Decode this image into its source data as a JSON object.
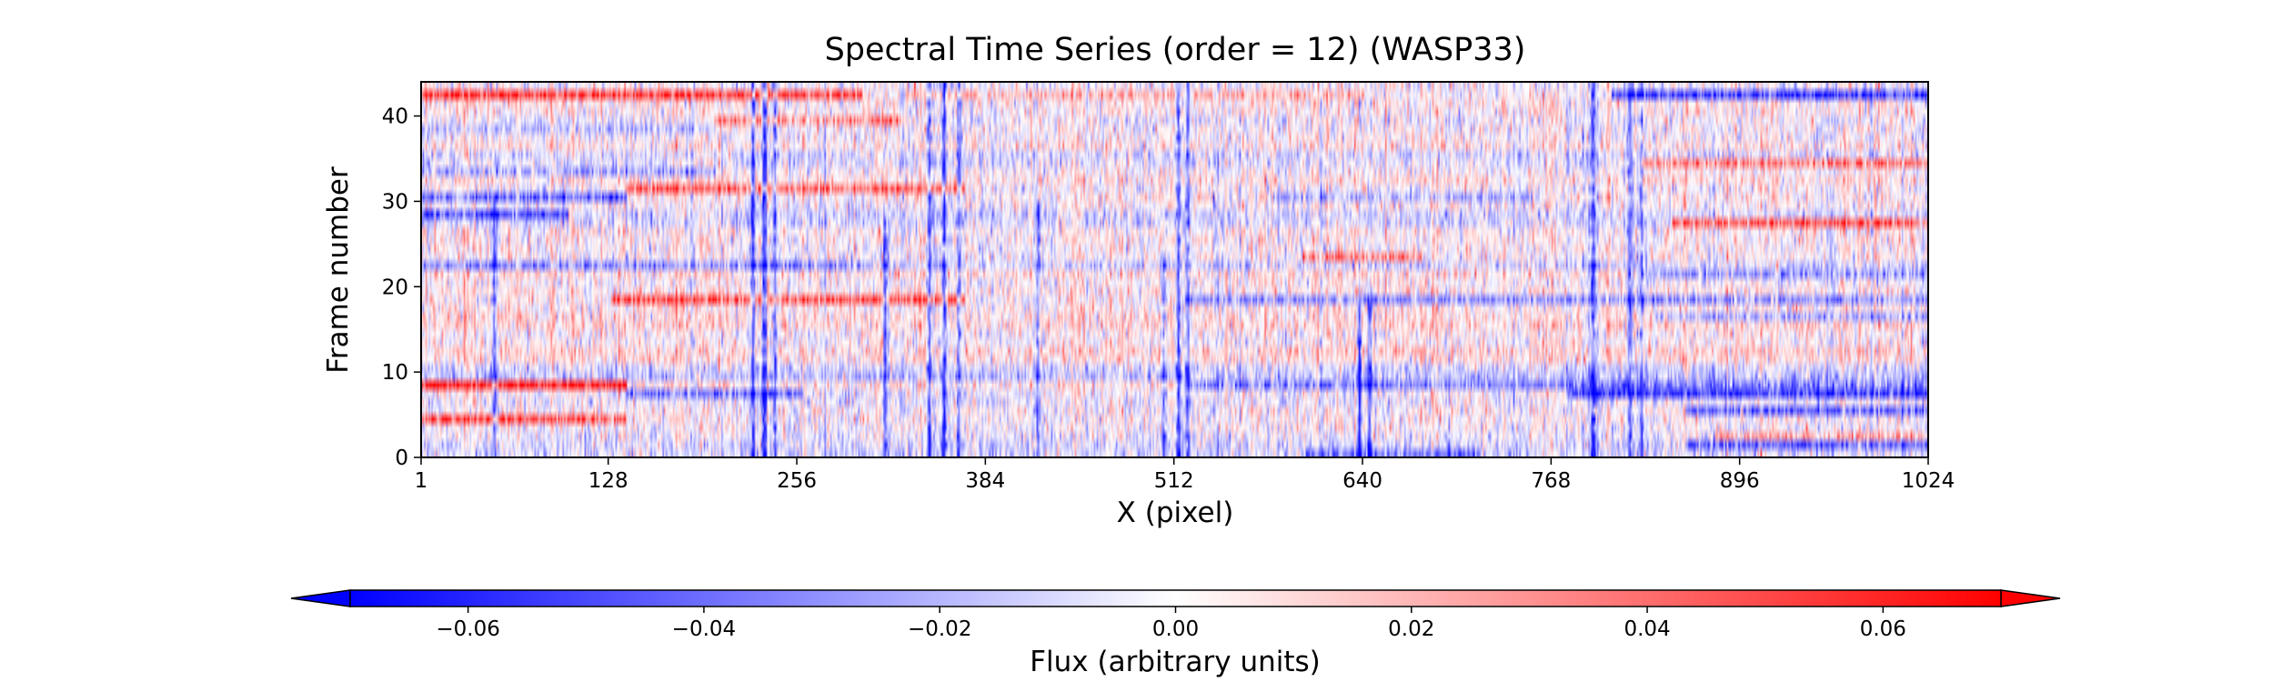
{
  "chart_data": {
    "type": "heatmap",
    "title": "Spectral Time Series (order = 12) (WASP33)",
    "xlabel": "X (pixel)",
    "ylabel": "Frame number",
    "xlim": [
      1,
      1024
    ],
    "ylim": [
      0,
      44
    ],
    "x_ticks": [
      1,
      128,
      256,
      384,
      512,
      640,
      768,
      896,
      1024
    ],
    "x_tick_labels": [
      "1",
      "128",
      "256",
      "384",
      "512",
      "640",
      "768",
      "896",
      "1024"
    ],
    "y_ticks": [
      0,
      10,
      20,
      30,
      40
    ],
    "y_tick_labels": [
      "0",
      "10",
      "20",
      "30",
      "40"
    ],
    "n_frames": 44,
    "n_pixels": 1024,
    "value_range": [
      -0.07,
      0.07
    ],
    "colormap": "bwr",
    "colorbar": {
      "label": "Flux (arbitrary units)",
      "orientation": "horizontal",
      "extend": "both",
      "range": [
        -0.07,
        0.07
      ],
      "ticks": [
        -0.06,
        -0.04,
        -0.02,
        0.0,
        0.02,
        0.04,
        0.06
      ],
      "tick_labels": [
        "−0.06",
        "−0.04",
        "−0.02",
        "0.00",
        "0.02",
        "0.04",
        "0.06"
      ]
    },
    "column_features": [
      {
        "x": 50,
        "amplitude": -0.05,
        "frames": [
          0,
          30
        ]
      },
      {
        "x": 226,
        "amplitude": -0.06,
        "frames": [
          0,
          44
        ]
      },
      {
        "x": 234,
        "amplitude": -0.06,
        "frames": [
          0,
          44
        ]
      },
      {
        "x": 241,
        "amplitude": -0.045,
        "frames": [
          0,
          44
        ]
      },
      {
        "x": 316,
        "amplitude": -0.06,
        "frames": [
          0,
          28
        ]
      },
      {
        "x": 346,
        "amplitude": -0.05,
        "frames": [
          0,
          44
        ]
      },
      {
        "x": 356,
        "amplitude": -0.055,
        "frames": [
          0,
          44
        ]
      },
      {
        "x": 366,
        "amplitude": -0.045,
        "frames": [
          0,
          44
        ]
      },
      {
        "x": 420,
        "amplitude": -0.05,
        "frames": [
          0,
          30
        ]
      },
      {
        "x": 505,
        "amplitude": -0.04,
        "frames": [
          0,
          24
        ]
      },
      {
        "x": 515,
        "amplitude": -0.06,
        "frames": [
          0,
          44
        ]
      },
      {
        "x": 522,
        "amplitude": -0.045,
        "frames": [
          0,
          44
        ]
      },
      {
        "x": 638,
        "amplitude": -0.055,
        "frames": [
          0,
          18
        ]
      },
      {
        "x": 645,
        "amplitude": -0.045,
        "frames": [
          0,
          18
        ]
      },
      {
        "x": 797,
        "amplitude": -0.06,
        "frames": [
          0,
          44
        ]
      },
      {
        "x": 822,
        "amplitude": -0.05,
        "frames": [
          0,
          44
        ]
      },
      {
        "x": 830,
        "amplitude": -0.05,
        "frames": [
          0,
          44
        ]
      }
    ],
    "row_features": [
      {
        "frame": 42,
        "x_range": [
          1,
          300
        ],
        "amplitude": 0.06
      },
      {
        "frame": 42,
        "x_range": [
          330,
          640
        ],
        "amplitude": 0.02
      },
      {
        "frame": 42,
        "x_range": [
          810,
          1024
        ],
        "amplitude": -0.06
      },
      {
        "frame": 39,
        "x_range": [
          200,
          330
        ],
        "amplitude": 0.04
      },
      {
        "frame": 38,
        "x_range": [
          1,
          200
        ],
        "amplitude": -0.02
      },
      {
        "frame": 34,
        "x_range": [
          830,
          1024
        ],
        "amplitude": 0.045
      },
      {
        "frame": 33,
        "x_range": [
          1,
          200
        ],
        "amplitude": -0.03
      },
      {
        "frame": 31,
        "x_range": [
          140,
          370
        ],
        "amplitude": 0.05
      },
      {
        "frame": 30,
        "x_range": [
          1,
          140
        ],
        "amplitude": -0.05
      },
      {
        "frame": 30,
        "x_range": [
          580,
          760
        ],
        "amplitude": -0.025
      },
      {
        "frame": 28,
        "x_range": [
          1,
          100
        ],
        "amplitude": -0.04
      },
      {
        "frame": 27,
        "x_range": [
          850,
          1024
        ],
        "amplitude": 0.06
      },
      {
        "frame": 23,
        "x_range": [
          600,
          680
        ],
        "amplitude": 0.04
      },
      {
        "frame": 22,
        "x_range": [
          1,
          300
        ],
        "amplitude": -0.02
      },
      {
        "frame": 21,
        "x_range": [
          830,
          1024
        ],
        "amplitude": -0.04
      },
      {
        "frame": 18,
        "x_range": [
          130,
          370
        ],
        "amplitude": 0.05
      },
      {
        "frame": 18,
        "x_range": [
          520,
          1024
        ],
        "amplitude": -0.035
      },
      {
        "frame": 16,
        "x_range": [
          840,
          1024
        ],
        "amplitude": -0.035
      },
      {
        "frame": 8,
        "x_range": [
          1,
          140
        ],
        "amplitude": 0.06
      },
      {
        "frame": 8,
        "x_range": [
          520,
          1024
        ],
        "amplitude": -0.045
      },
      {
        "frame": 7,
        "x_range": [
          140,
          260
        ],
        "amplitude": -0.04
      },
      {
        "frame": 7,
        "x_range": [
          780,
          1024
        ],
        "amplitude": -0.06
      },
      {
        "frame": 5,
        "x_range": [
          860,
          1024
        ],
        "amplitude": -0.05
      },
      {
        "frame": 4,
        "x_range": [
          1,
          140
        ],
        "amplitude": 0.05
      },
      {
        "frame": 2,
        "x_range": [
          880,
          1024
        ],
        "amplitude": 0.03
      },
      {
        "frame": 1,
        "x_range": [
          860,
          1024
        ],
        "amplitude": -0.04
      },
      {
        "frame": 0,
        "x_range": [
          600,
          720
        ],
        "amplitude": -0.03
      }
    ],
    "noise_sigma": 0.012
  }
}
